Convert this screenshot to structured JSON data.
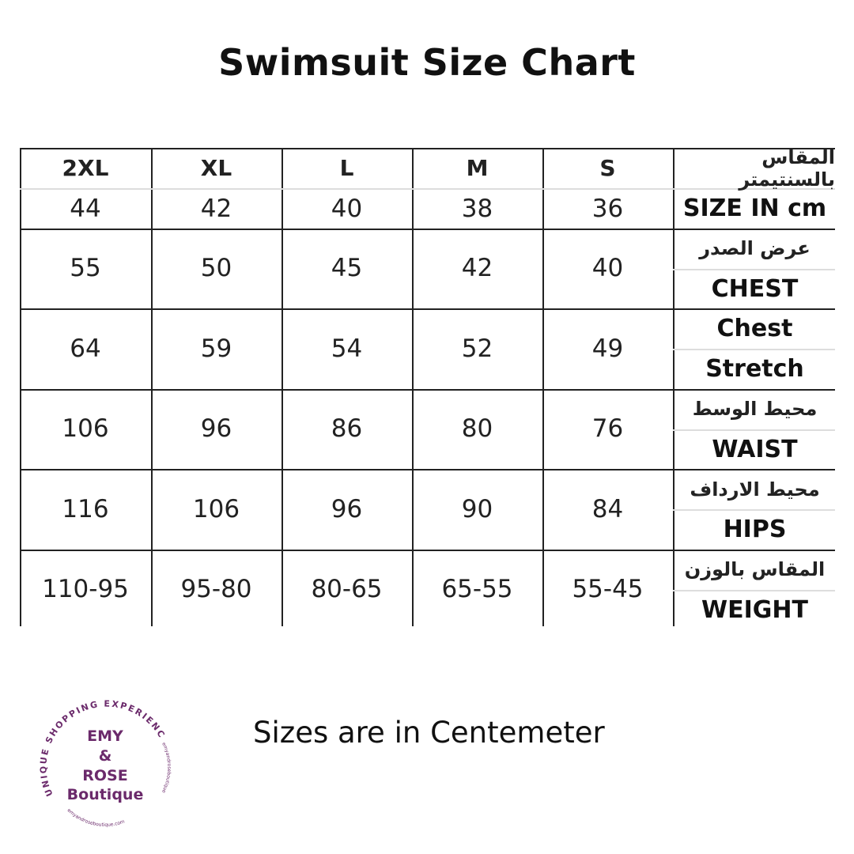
{
  "title": "Swimsuit Size Chart",
  "table": {
    "sizes": [
      "2XL",
      "XL",
      "L",
      "M",
      "S"
    ],
    "rows": [
      {
        "label_ar": "المقاس بالسنتيمتر",
        "label_en": "SIZE IN cm",
        "values": [
          "44",
          "42",
          "40",
          "38",
          "36"
        ]
      },
      {
        "label_ar": "عرض الصدر",
        "label_en": "CHEST",
        "values": [
          "55",
          "50",
          "45",
          "42",
          "40"
        ]
      },
      {
        "label_ar": "Chest",
        "label_en": "Stretch",
        "values": [
          "64",
          "59",
          "54",
          "52",
          "49"
        ]
      },
      {
        "label_ar": "محيط الوسط",
        "label_en": "WAIST",
        "values": [
          "106",
          "96",
          "86",
          "80",
          "76"
        ]
      },
      {
        "label_ar": "محيط الارداف",
        "label_en": "HIPS",
        "values": [
          "116",
          "106",
          "96",
          "90",
          "84"
        ]
      },
      {
        "label_ar": "المقاس بالوزن",
        "label_en": "WEIGHT",
        "values": [
          "110-95",
          "95-80",
          "80-65",
          "65-55",
          "55-45"
        ]
      }
    ]
  },
  "note": "Sizes are in Centemeter",
  "logo": {
    "arc_text": "UNIQUE SHOPPING EXPERIENCE",
    "line1": "EMY",
    "line2": "&",
    "line3": "ROSE",
    "line4": "Boutique",
    "instagram": "emyandroseboutique",
    "facebook": "EmRBoutique",
    "website": "emyandroseboutique.com",
    "color": "#6b2a6b"
  }
}
